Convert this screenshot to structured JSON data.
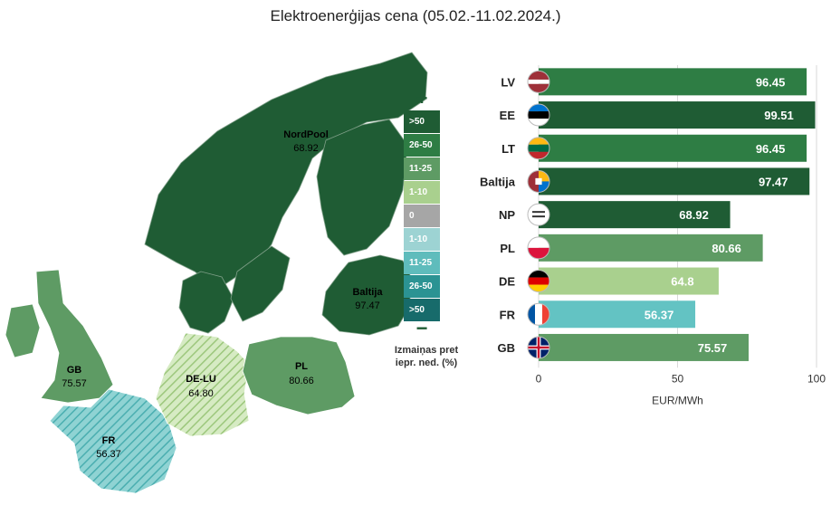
{
  "title": "Elektroenerģijas cena (05.02.-11.02.2024.)",
  "map": {
    "regions": [
      {
        "code": "NordPool",
        "value": "68.92",
        "color": "#1f5c34"
      },
      {
        "code": "Baltija",
        "value": "97.47",
        "color": "#1f5c34"
      },
      {
        "code": "GB",
        "value": "75.57",
        "color": "#5e9b64"
      },
      {
        "code": "PL",
        "value": "80.66",
        "color": "#5e9b64"
      },
      {
        "code": "DE-LU",
        "value": "64.80",
        "color": "#a9d08e"
      },
      {
        "code": "FR",
        "value": "56.37",
        "color": "#63c3c3"
      }
    ]
  },
  "legend": {
    "plus_sign": "+",
    "minus_sign": "−",
    "items": [
      {
        "label": ">50",
        "color": "#1f5c34"
      },
      {
        "label": "26-50",
        "color": "#2e7d44"
      },
      {
        "label": "11-25",
        "color": "#5e9b64"
      },
      {
        "label": "1-10",
        "color": "#a9d08e"
      },
      {
        "label": "0",
        "color": "#a6a6a6"
      },
      {
        "label": "1-10",
        "color": "#9dd3d3"
      },
      {
        "label": "11-25",
        "color": "#5fbcbc"
      },
      {
        "label": "26-50",
        "color": "#2b9393"
      },
      {
        "label": ">50",
        "color": "#176b6b"
      }
    ],
    "caption_line1": "Izmaiņas pret",
    "caption_line2": "iepr. ned. (%)"
  },
  "chart_data": {
    "type": "bar",
    "orientation": "horizontal",
    "categories": [
      "LV",
      "EE",
      "LT",
      "Baltija",
      "NP",
      "PL",
      "DE",
      "FR",
      "GB"
    ],
    "values": [
      96.45,
      99.51,
      96.45,
      97.47,
      68.92,
      80.66,
      64.8,
      56.37,
      75.57
    ],
    "value_labels": [
      "96.45",
      "99.51",
      "96.45",
      "97.47",
      "68.92",
      "80.66",
      "64.8",
      "56.37",
      "75.57"
    ],
    "colors": [
      "#2e7d44",
      "#1f5c34",
      "#2e7d44",
      "#1f5c34",
      "#1f5c34",
      "#5e9b64",
      "#a9d08e",
      "#63c3c3",
      "#5e9b64"
    ],
    "flag_icons": [
      "latvia-flag-icon",
      "estonia-flag-icon",
      "lithuania-flag-icon",
      "baltic-flag-icon",
      "nordpool-logo-icon",
      "poland-flag-icon",
      "germany-flag-icon",
      "france-flag-icon",
      "uk-flag-icon"
    ],
    "xlim": [
      0,
      100
    ],
    "xticks": [
      "0",
      "50",
      "100"
    ],
    "xlabel": "EUR/MWh",
    "grid": true
  }
}
